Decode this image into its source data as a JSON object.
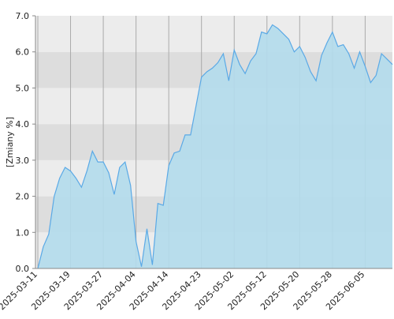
{
  "chart_data": {
    "type": "area",
    "y_label": "[Zmiany %]",
    "categories": [
      "2025-03-11",
      null,
      null,
      null,
      null,
      null,
      "2025-03-19",
      null,
      null,
      null,
      null,
      null,
      "2025-03-27",
      null,
      null,
      null,
      null,
      null,
      "2025-04-04",
      null,
      null,
      null,
      null,
      null,
      "2025-04-14",
      null,
      null,
      null,
      null,
      null,
      "2025-04-23",
      null,
      null,
      null,
      null,
      null,
      "2025-05-02",
      null,
      null,
      null,
      null,
      null,
      "2025-05-12",
      null,
      null,
      null,
      null,
      null,
      "2025-05-20",
      null,
      null,
      null,
      null,
      null,
      "2025-05-28",
      null,
      null,
      null,
      null,
      null,
      "2025-06-05",
      null,
      null,
      null,
      null,
      null
    ],
    "values": [
      0.0,
      0.6,
      0.95,
      2.0,
      2.5,
      2.8,
      2.7,
      2.5,
      2.25,
      2.7,
      3.25,
      2.95,
      2.95,
      2.65,
      2.05,
      2.8,
      2.95,
      2.3,
      0.75,
      0.05,
      1.1,
      0.1,
      1.8,
      1.75,
      2.85,
      3.2,
      3.25,
      3.7,
      3.7,
      4.5,
      5.3,
      5.45,
      5.55,
      5.7,
      5.95,
      5.2,
      6.05,
      5.65,
      5.4,
      5.75,
      5.95,
      6.55,
      6.5,
      6.75,
      6.65,
      6.5,
      6.35,
      6.0,
      6.15,
      5.85,
      5.45,
      5.2,
      5.9,
      6.25,
      6.55,
      6.15,
      6.2,
      5.95,
      5.55,
      6.0,
      5.6,
      5.15,
      5.35,
      5.95,
      5.8,
      5.65
    ],
    "color": "#5aa9e6",
    "fill": "#b3dcec",
    "ylim": [
      0,
      7
    ],
    "yticks": [
      {
        "value": 0,
        "label": "0.0"
      },
      {
        "value": 1,
        "label": "1.0"
      },
      {
        "value": 2,
        "label": "2.0"
      },
      {
        "value": 3,
        "label": "3.0"
      },
      {
        "value": 4,
        "label": "4.0"
      },
      {
        "value": 5,
        "label": "5.0"
      },
      {
        "value": 6,
        "label": "6.0"
      },
      {
        "value": 7,
        "label": "7.0"
      }
    ],
    "grid": true
  }
}
